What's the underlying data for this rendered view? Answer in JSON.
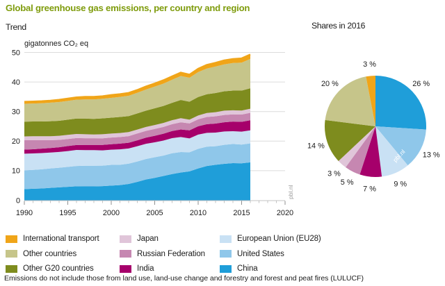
{
  "page": {
    "title": "Global greenhouse gas emissions, per country and region",
    "title_color": "#7F9C0D",
    "footnote": "Emissions do not include those from land use, land-use change and forestry and forest and peat fires (LULUCF)",
    "watermark": "pbl.nl"
  },
  "chart_data": [
    {
      "type": "area",
      "title": "Trend",
      "ylabel": "gigatonnes CO₂ eq",
      "xlabel": "",
      "xlim": [
        1990,
        2020
      ],
      "ylim": [
        0,
        50
      ],
      "ytick_step": 10,
      "xtick_labeled": [
        1990,
        1995,
        2000,
        2005,
        2010,
        2015,
        2020
      ],
      "grid": true,
      "legend_position": "bottom",
      "watermark": "pbl.nl",
      "x": [
        1990,
        1991,
        1992,
        1993,
        1994,
        1995,
        1996,
        1997,
        1998,
        1999,
        2000,
        2001,
        2002,
        2003,
        2004,
        2005,
        2006,
        2007,
        2008,
        2009,
        2010,
        2011,
        2012,
        2013,
        2014,
        2015,
        2016
      ],
      "series": [
        {
          "name": "China",
          "color": "#1F9ED9",
          "values": [
            3.77,
            3.89,
            3.99,
            4.19,
            4.36,
            4.56,
            4.72,
            4.71,
            4.71,
            4.78,
            4.96,
            5.13,
            5.52,
            6.22,
            7.03,
            7.56,
            8.23,
            8.86,
            9.38,
            9.77,
            10.76,
            11.6,
            11.99,
            12.31,
            12.56,
            12.49,
            12.83
          ]
        },
        {
          "name": "United States",
          "color": "#8FC7EA",
          "values": [
            6.34,
            6.38,
            6.48,
            6.58,
            6.64,
            6.74,
            6.88,
            6.96,
            6.96,
            6.92,
            7.0,
            6.87,
            6.87,
            6.89,
            6.94,
            6.98,
            6.89,
            7.03,
            6.94,
            6.45,
            6.65,
            6.53,
            6.29,
            6.45,
            6.48,
            6.34,
            6.41
          ]
        },
        {
          "name": "European Union (EU28)",
          "color": "#C9E1F4",
          "values": [
            5.65,
            5.58,
            5.48,
            5.38,
            5.35,
            5.35,
            5.41,
            5.29,
            5.29,
            5.17,
            5.16,
            5.23,
            5.13,
            5.16,
            5.13,
            5.07,
            5.08,
            5.11,
            5.08,
            4.69,
            4.79,
            4.68,
            4.62,
            4.5,
            4.32,
            4.39,
            4.41
          ]
        },
        {
          "name": "India",
          "color": "#A6006B",
          "values": [
            1.39,
            1.4,
            1.5,
            1.5,
            1.59,
            1.69,
            1.67,
            1.76,
            1.76,
            1.85,
            1.85,
            1.94,
            1.94,
            2.01,
            2.09,
            2.2,
            2.3,
            2.41,
            2.54,
            2.74,
            2.84,
            2.92,
            3.05,
            3.13,
            3.24,
            3.32,
            3.41
          ]
        },
        {
          "name": "Russian Federation",
          "color": "#C687B1",
          "values": [
            3.17,
            3.09,
            2.89,
            2.69,
            2.48,
            2.38,
            2.36,
            2.25,
            2.25,
            2.24,
            2.24,
            2.23,
            2.23,
            2.3,
            2.28,
            2.3,
            2.3,
            2.31,
            2.44,
            2.34,
            2.35,
            2.44,
            2.46,
            2.44,
            2.45,
            2.44,
            2.51
          ]
        },
        {
          "name": "Japan",
          "color": "#E0C5D9",
          "values": [
            1.29,
            1.3,
            1.3,
            1.3,
            1.39,
            1.39,
            1.38,
            1.37,
            1.27,
            1.37,
            1.36,
            1.35,
            1.36,
            1.34,
            1.33,
            1.34,
            1.34,
            1.35,
            1.37,
            1.27,
            1.27,
            1.36,
            1.38,
            1.47,
            1.37,
            1.37,
            1.4
          ]
        },
        {
          "name": "Other G20 countries",
          "color": "#7E8C1E",
          "values": [
            4.96,
            4.99,
            4.99,
            5.08,
            5.06,
            5.16,
            5.21,
            5.29,
            5.29,
            5.36,
            5.35,
            5.42,
            5.42,
            5.45,
            5.51,
            5.64,
            5.75,
            5.88,
            6.16,
            6.06,
            6.26,
            6.33,
            6.49,
            6.55,
            6.67,
            6.73,
            6.91
          ]
        },
        {
          "name": "Other countries",
          "color": "#C6C58A",
          "values": [
            6.05,
            6.08,
            6.18,
            6.28,
            6.34,
            6.34,
            6.39,
            6.47,
            6.57,
            6.63,
            6.71,
            6.77,
            6.87,
            6.98,
            7.13,
            7.36,
            7.56,
            7.8,
            8.11,
            8.11,
            8.41,
            8.67,
            8.95,
            9.09,
            9.32,
            9.46,
            9.92
          ]
        },
        {
          "name": "International transport",
          "color": "#F0A519",
          "values": [
            0.69,
            0.7,
            0.7,
            0.7,
            0.79,
            0.79,
            0.79,
            0.88,
            0.88,
            0.88,
            0.97,
            0.97,
            0.97,
            0.96,
            1.05,
            1.05,
            1.15,
            1.16,
            1.17,
            1.07,
            1.17,
            1.27,
            1.28,
            1.37,
            1.37,
            1.46,
            1.5
          ]
        }
      ]
    },
    {
      "type": "pie",
      "title": "Shares in 2016",
      "start_angle_deg": 0,
      "direction": "clockwise",
      "watermark": "pbl.nl",
      "slices": [
        {
          "name": "China",
          "color": "#1F9ED9",
          "value": 26,
          "label": "26 %"
        },
        {
          "name": "United States",
          "color": "#8FC7EA",
          "value": 13,
          "label": "13 %"
        },
        {
          "name": "European Union (EU28)",
          "color": "#C9E1F4",
          "value": 9,
          "label": "9 %"
        },
        {
          "name": "India",
          "color": "#A6006B",
          "value": 7,
          "label": "7 %"
        },
        {
          "name": "Russian Federation",
          "color": "#C687B1",
          "value": 5,
          "label": "5 %"
        },
        {
          "name": "Japan",
          "color": "#E0C5D9",
          "value": 3,
          "label": "3 %"
        },
        {
          "name": "Other G20 countries",
          "color": "#7E8C1E",
          "value": 14,
          "label": "14 %"
        },
        {
          "name": "Other countries",
          "color": "#C6C58A",
          "value": 20,
          "label": "20 %"
        },
        {
          "name": "International transport",
          "color": "#F0A519",
          "value": 3,
          "label": "3 %"
        }
      ]
    }
  ],
  "legend": {
    "columns": [
      [
        {
          "label": "International transport",
          "color": "#F0A519"
        },
        {
          "label": "Other countries",
          "color": "#C6C58A"
        },
        {
          "label": "Other G20 countries",
          "color": "#7E8C1E"
        }
      ],
      [
        {
          "label": "Japan",
          "color": "#E0C5D9"
        },
        {
          "label": "Russian Federation",
          "color": "#C687B1"
        },
        {
          "label": "India",
          "color": "#A6006B"
        }
      ],
      [
        {
          "label": "European Union (EU28)",
          "color": "#C9E1F4"
        },
        {
          "label": "United States",
          "color": "#8FC7EA"
        },
        {
          "label": "China",
          "color": "#1F9ED9"
        }
      ]
    ]
  }
}
